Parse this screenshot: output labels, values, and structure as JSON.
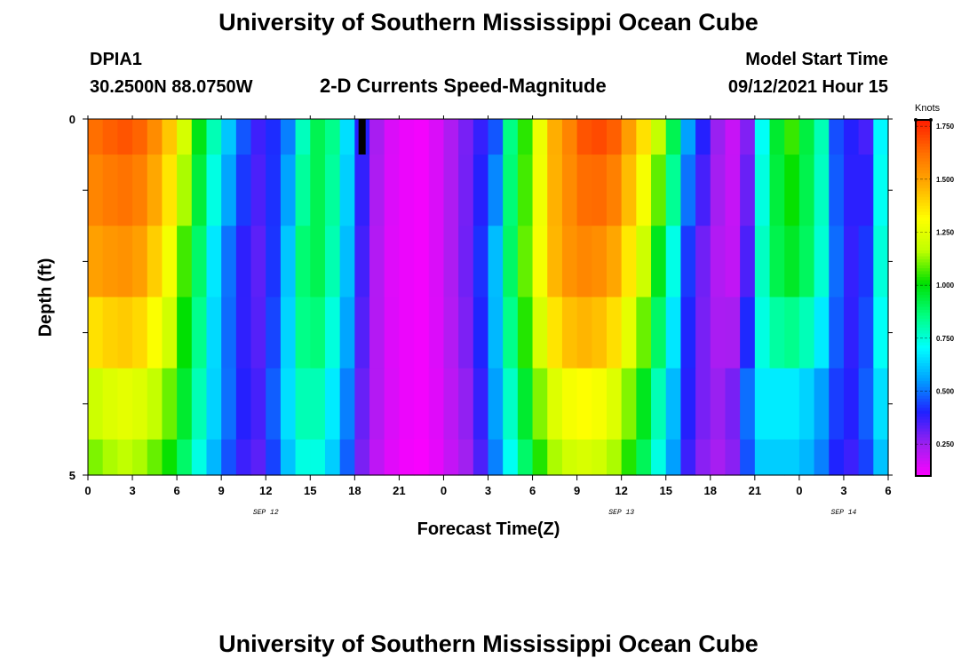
{
  "header": {
    "title": "University of Southern Mississippi Ocean Cube",
    "station_id": "DPIA1",
    "coordinates": "30.2500N  88.0750W",
    "subtitle": "2-D Currents Speed-Magnitude",
    "model_start_label": "Model Start Time",
    "model_start_value": "09/12/2021 Hour 15"
  },
  "footer": {
    "title": "University of Southern Mississippi Ocean Cube"
  },
  "chart_data": {
    "type": "heatmap",
    "xlabel": "Forecast Time(Z)",
    "ylabel": "Depth (ft)",
    "ylim": [
      0,
      5
    ],
    "y_tick_labels": [
      "0",
      "5"
    ],
    "x_tick_labels": [
      "0",
      "3",
      "6",
      "9",
      "12",
      "15",
      "18",
      "21",
      "0",
      "3",
      "6",
      "9",
      "12",
      "15",
      "18",
      "21",
      "0",
      "3",
      "6"
    ],
    "date_labels": [
      {
        "label": "SEP 12",
        "at_tick": 4
      },
      {
        "label": "SEP 13",
        "at_tick": 12
      },
      {
        "label": "SEP 14",
        "at_tick": 17
      }
    ],
    "hours": 54,
    "depth_layers": 5,
    "current_time_marker_hour": 18.5,
    "colorbar": {
      "title": "Knots",
      "range": [
        0.1,
        1.78
      ],
      "tick_labels": [
        "0.250",
        "0.500",
        "0.750",
        "1.000",
        "1.250",
        "1.500",
        "1.750"
      ],
      "colors": [
        "#ff00ff",
        "#a020f0",
        "#2020ff",
        "#00a0ff",
        "#00ffff",
        "#00ff80",
        "#00e000",
        "#c0ff00",
        "#ffff00",
        "#ffb000",
        "#ff7000",
        "#ff2000"
      ]
    },
    "speed_by_hour_top": [
      1.63,
      1.66,
      1.68,
      1.65,
      1.56,
      1.43,
      1.22,
      0.99,
      0.8,
      0.62,
      0.47,
      0.37,
      0.42,
      0.52,
      0.79,
      0.92,
      0.85,
      0.66,
      0.4,
      0.24,
      0.16,
      0.13,
      0.12,
      0.16,
      0.23,
      0.3,
      0.38,
      0.47,
      0.86,
      1.05,
      1.28,
      1.48,
      1.58,
      1.68,
      1.7,
      1.66,
      1.52,
      1.38,
      1.18,
      0.92,
      0.56,
      0.4,
      0.26,
      0.19,
      0.29,
      0.72,
      0.96,
      1.06,
      0.94,
      0.8,
      0.46,
      0.4,
      0.36,
      0.7
    ],
    "speed_by_hour_mid": [
      1.5,
      1.52,
      1.53,
      1.5,
      1.4,
      1.28,
      1.05,
      0.88,
      0.66,
      0.49,
      0.38,
      0.33,
      0.43,
      0.63,
      0.89,
      0.92,
      0.8,
      0.6,
      0.36,
      0.22,
      0.15,
      0.13,
      0.12,
      0.16,
      0.23,
      0.31,
      0.43,
      0.62,
      0.9,
      1.1,
      1.3,
      1.46,
      1.54,
      1.56,
      1.54,
      1.48,
      1.35,
      1.18,
      0.96,
      0.72,
      0.42,
      0.3,
      0.22,
      0.2,
      0.36,
      0.79,
      0.92,
      0.96,
      0.9,
      0.76,
      0.5,
      0.38,
      0.44,
      0.76
    ],
    "speed_by_hour_bottom": [
      1.2,
      1.24,
      1.26,
      1.24,
      1.18,
      1.1,
      0.96,
      0.8,
      0.64,
      0.5,
      0.4,
      0.36,
      0.48,
      0.66,
      0.8,
      0.8,
      0.68,
      0.52,
      0.32,
      0.22,
      0.16,
      0.13,
      0.12,
      0.15,
      0.21,
      0.27,
      0.38,
      0.56,
      0.78,
      0.96,
      1.12,
      1.24,
      1.3,
      1.32,
      1.3,
      1.24,
      1.12,
      0.98,
      0.8,
      0.6,
      0.4,
      0.3,
      0.26,
      0.3,
      0.5,
      0.68,
      0.68,
      0.68,
      0.64,
      0.56,
      0.44,
      0.4,
      0.48,
      0.66
    ],
    "layer_weights_top_to_bottom": [
      0.0,
      0.2,
      0.45,
      0.7,
      1.0
    ]
  }
}
